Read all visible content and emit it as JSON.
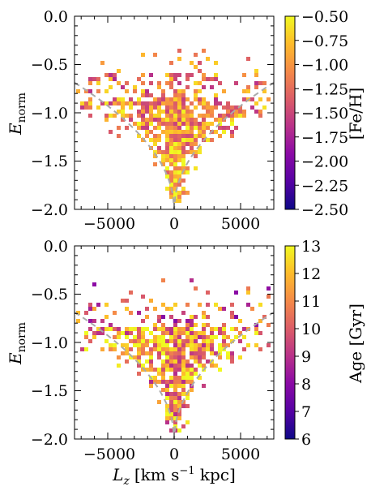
{
  "chart_data": [
    {
      "type": "heatmap",
      "panel": "top",
      "xlim": [
        -7500,
        7500
      ],
      "ylim": [
        -2.0,
        0.0
      ],
      "x_ticks": [
        -5000,
        0,
        5000
      ],
      "x_tick_labels": [
        "−5000",
        "0",
        "5000"
      ],
      "y_ticks": [
        0.0,
        -0.5,
        -1.0,
        -1.5,
        -2.0
      ],
      "y_tick_labels": [
        "0.0",
        "−0.5",
        "−1.0",
        "−1.5",
        "−2.0"
      ],
      "ylabel": "E",
      "ylabel_sub": "norm",
      "xlabel": "",
      "colorbar": {
        "label": "[Fe/H]",
        "range": [
          -2.5,
          -0.5
        ],
        "ticks": [
          -0.5,
          -0.75,
          -1.0,
          -1.25,
          -1.5,
          -1.75,
          -2.0,
          -2.25,
          -2.5
        ],
        "tick_labels": [
          "−0.50",
          "−0.75",
          "−1.00",
          "−1.25",
          "−1.50",
          "−1.75",
          "−2.00",
          "−2.25",
          "−2.50"
        ],
        "colormap": "plasma"
      },
      "boundary_curve": {
        "style": "dashed",
        "color": "#aaaaaa"
      },
      "grid": false
    },
    {
      "type": "heatmap",
      "panel": "bottom",
      "xlim": [
        -7500,
        7500
      ],
      "ylim": [
        -2.0,
        0.0
      ],
      "x_ticks": [
        -5000,
        0,
        5000
      ],
      "x_tick_labels": [
        "−5000",
        "0",
        "5000"
      ],
      "y_ticks": [
        0.0,
        -0.5,
        -1.0,
        -1.5,
        -2.0
      ],
      "y_tick_labels": [
        "0.0",
        "−0.5",
        "−1.0",
        "−1.5",
        "−2.0"
      ],
      "ylabel": "E",
      "ylabel_sub": "norm",
      "xlabel": "L",
      "xlabel_sub": "z",
      "xlabel_unit": "[km s",
      "xlabel_unit_sup": "−1",
      "xlabel_unit_end": " kpc]",
      "colorbar": {
        "label": "Age [Gyr]",
        "range": [
          6,
          13
        ],
        "ticks": [
          13,
          12,
          11,
          10,
          9,
          8,
          7,
          6
        ],
        "tick_labels": [
          "13",
          "12",
          "11",
          "10",
          "9",
          "8",
          "7",
          "6"
        ],
        "colormap": "plasma"
      },
      "boundary_curve": {
        "style": "dashed",
        "color": "#aaaaaa"
      },
      "grid": false
    }
  ]
}
